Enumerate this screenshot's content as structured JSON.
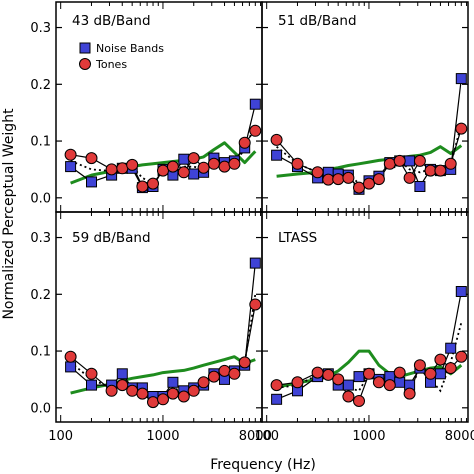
{
  "chart_data": {
    "type": "line",
    "xlabel": "Frequency (Hz)",
    "ylabel": "Normalized Perceptual Weight",
    "x_scale": "log",
    "xlim": [
      90,
      9300
    ],
    "ylim": [
      -0.025,
      0.345
    ],
    "x_ticks": [
      100,
      1000,
      8000
    ],
    "x_tick_labels": [
      "100",
      "1000",
      "8000"
    ],
    "y_ticks": [
      0.0,
      0.1,
      0.2,
      0.3
    ],
    "y_tick_labels": [
      "0.0",
      "0.1",
      "0.2",
      "0.3"
    ],
    "legend": {
      "entries": [
        "Noise Bands",
        "Tones"
      ],
      "position": "top-left of first panel"
    },
    "series_style": {
      "noise_bands": {
        "marker": "square",
        "color": "#3f43d6",
        "line": "#000000"
      },
      "tones": {
        "marker": "circle",
        "color": "#e03a3a",
        "line": "#000000"
      },
      "dotted": {
        "color": "#000000",
        "dash": "dotted"
      },
      "green": {
        "color": "#1e8c1e"
      }
    },
    "frequencies": [
      125,
      200,
      315,
      400,
      500,
      630,
      800,
      1000,
      1250,
      1600,
      2000,
      2500,
      3150,
      4000,
      5000,
      6300,
      8000
    ],
    "panels": [
      {
        "title": "43 dB/Band",
        "x": [
          125,
          200,
          315,
          400,
          500,
          630,
          800,
          1000,
          1250,
          1600,
          2000,
          2500,
          3150,
          4000,
          5000,
          6300,
          8000
        ],
        "noise_bands": [
          0.055,
          0.028,
          0.04,
          0.052,
          0.052,
          0.018,
          0.02,
          0.05,
          0.04,
          0.068,
          0.042,
          0.045,
          0.07,
          0.062,
          0.065,
          0.088,
          0.165
        ],
        "tones": [
          0.076,
          0.07,
          0.05,
          0.052,
          0.058,
          0.02,
          0.025,
          0.048,
          0.055,
          0.045,
          0.07,
          0.053,
          0.06,
          0.055,
          0.06,
          0.097,
          0.118
        ],
        "dotted": [
          0.065,
          0.05,
          0.047,
          0.052,
          0.055,
          0.035,
          0.025,
          0.05,
          0.05,
          0.055,
          0.055,
          0.05,
          0.065,
          0.058,
          0.062,
          0.085,
          0.13
        ],
        "green": [
          0.026,
          0.04,
          0.047,
          0.052,
          0.055,
          0.058,
          0.06,
          0.062,
          0.064,
          0.066,
          0.068,
          0.072,
          0.085,
          0.097,
          0.08,
          0.062,
          0.082
        ]
      },
      {
        "title": "51 dB/Band",
        "x": [
          125,
          200,
          315,
          400,
          500,
          630,
          800,
          1000,
          1250,
          1600,
          2000,
          2500,
          3150,
          4000,
          5000,
          6300,
          8000
        ],
        "noise_bands": [
          0.075,
          0.055,
          0.035,
          0.045,
          0.042,
          0.04,
          0.015,
          0.03,
          0.038,
          0.062,
          0.065,
          0.065,
          0.02,
          0.05,
          0.048,
          0.05,
          0.21
        ],
        "tones": [
          0.102,
          0.06,
          0.045,
          0.032,
          0.033,
          0.035,
          0.018,
          0.025,
          0.033,
          0.06,
          0.065,
          0.035,
          0.065,
          0.048,
          0.048,
          0.06,
          0.122
        ],
        "dotted": [
          0.09,
          0.06,
          0.045,
          0.038,
          0.04,
          0.042,
          0.025,
          0.03,
          0.038,
          0.06,
          0.065,
          0.05,
          0.045,
          0.05,
          0.048,
          0.058,
          0.13
        ],
        "green": [
          0.038,
          0.042,
          0.045,
          0.05,
          0.053,
          0.057,
          0.06,
          0.063,
          0.066,
          0.068,
          0.07,
          0.073,
          0.075,
          0.08,
          0.09,
          0.078,
          0.092
        ]
      },
      {
        "title": "59 dB/Band",
        "x": [
          125,
          200,
          315,
          400,
          500,
          630,
          800,
          1000,
          1250,
          1600,
          2000,
          2500,
          3150,
          4000,
          5000,
          6300,
          8000
        ],
        "noise_bands": [
          0.072,
          0.04,
          0.04,
          0.06,
          0.035,
          0.035,
          0.02,
          0.02,
          0.045,
          0.03,
          0.035,
          0.04,
          0.06,
          0.05,
          0.065,
          0.075,
          0.255
        ],
        "tones": [
          0.09,
          0.06,
          0.03,
          0.04,
          0.03,
          0.025,
          0.01,
          0.015,
          0.025,
          0.02,
          0.03,
          0.045,
          0.055,
          0.065,
          0.06,
          0.08,
          0.182
        ],
        "dotted": [
          0.08,
          0.05,
          0.035,
          0.05,
          0.035,
          0.03,
          0.018,
          0.02,
          0.035,
          0.028,
          0.035,
          0.045,
          0.058,
          0.058,
          0.062,
          0.078,
          0.2
        ],
        "green": [
          0.026,
          0.035,
          0.042,
          0.048,
          0.052,
          0.055,
          0.058,
          0.062,
          0.064,
          0.066,
          0.07,
          0.075,
          0.08,
          0.085,
          0.09,
          0.078,
          0.085
        ]
      },
      {
        "title": "LTASS",
        "x": [
          125,
          200,
          315,
          400,
          500,
          630,
          800,
          1000,
          1250,
          1600,
          2000,
          2500,
          3150,
          4000,
          5000,
          6300,
          8000
        ],
        "noise_bands": [
          0.015,
          0.03,
          0.055,
          0.06,
          0.04,
          0.04,
          0.055,
          0.06,
          0.05,
          0.055,
          0.045,
          0.04,
          0.07,
          0.045,
          0.06,
          0.105,
          0.205
        ],
        "tones": [
          0.04,
          0.045,
          0.062,
          0.058,
          0.05,
          0.02,
          0.012,
          0.06,
          0.045,
          0.04,
          0.062,
          0.025,
          0.075,
          0.06,
          0.085,
          0.07,
          0.09
        ],
        "dotted": [
          0.035,
          0.04,
          0.058,
          0.058,
          0.045,
          0.035,
          0.03,
          0.06,
          0.048,
          0.045,
          0.055,
          0.03,
          0.07,
          0.05,
          0.03,
          0.08,
          0.15
        ],
        "green": [
          0.036,
          0.044,
          0.05,
          0.056,
          0.065,
          0.08,
          0.1,
          0.1,
          0.075,
          0.06,
          0.055,
          0.06,
          0.065,
          0.07,
          0.072,
          0.06,
          0.075
        ]
      }
    ]
  }
}
